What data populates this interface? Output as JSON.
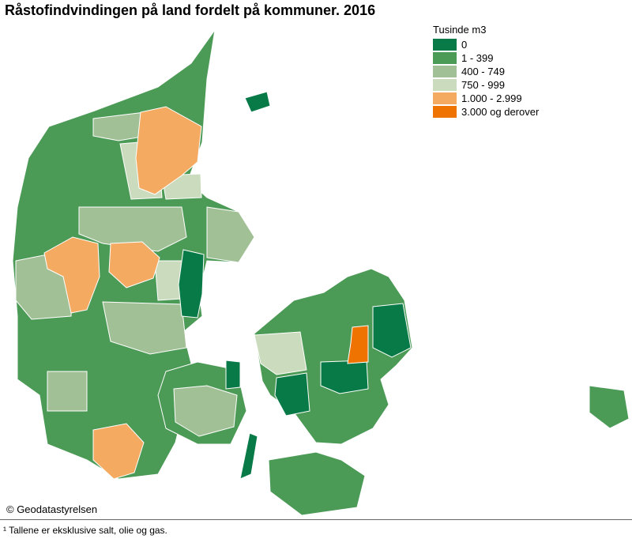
{
  "title": "Råstofindvindingen på land fordelt på kommuner. 2016",
  "legend": {
    "title": "Tusinde m3",
    "classes": [
      {
        "label": "0",
        "color": "#087a48"
      },
      {
        "label": "1 - 399",
        "color": "#4b9a56"
      },
      {
        "label": "400 - 749",
        "color": "#a2c096"
      },
      {
        "label": "750 - 999",
        "color": "#cadcbd"
      },
      {
        "label": "1.000 - 2.999",
        "color": "#f5aa62"
      },
      {
        "label": "3.000  og derover",
        "color": "#ee7300"
      }
    ]
  },
  "credit": "© Geodatastyrelsen",
  "footnote": "¹ Tallene er eksklusive salt, olie og gas."
}
